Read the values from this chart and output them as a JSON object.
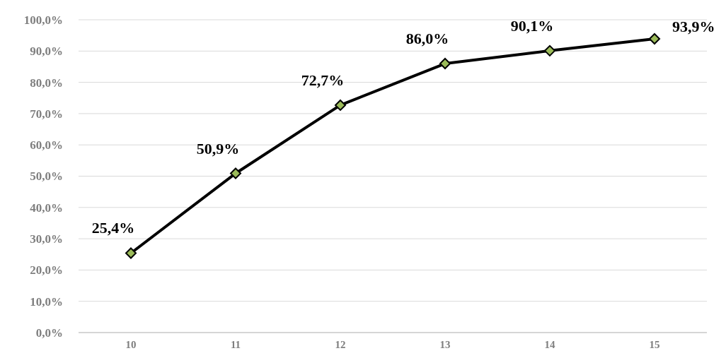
{
  "chart_data": {
    "type": "line",
    "categories": [
      "10",
      "11",
      "12",
      "13",
      "14",
      "15"
    ],
    "series": [
      {
        "color": "#000000",
        "values": [
          25.4,
          50.9,
          72.7,
          86.0,
          90.1,
          93.9
        ],
        "value_labels": [
          "25,4%",
          "50,9%",
          "72,7%",
          "86,0%",
          "90,1%",
          "93,9%"
        ]
      }
    ],
    "ylim": [
      0,
      100
    ],
    "yticks": [
      {
        "value": 0,
        "label": "0,0%"
      },
      {
        "value": 10,
        "label": "10,0%"
      },
      {
        "value": 20,
        "label": "20,0%"
      },
      {
        "value": 30,
        "label": "30,0%"
      },
      {
        "value": 40,
        "label": "40,0%"
      },
      {
        "value": 50,
        "label": "50,0%"
      },
      {
        "value": 60,
        "label": "60,0%"
      },
      {
        "value": 70,
        "label": "70,0%"
      },
      {
        "value": 80,
        "label": "80,0%"
      },
      {
        "value": 90,
        "label": "90,0%"
      },
      {
        "value": 100,
        "label": "100,0%"
      }
    ],
    "grid": "y",
    "marker": "diamond",
    "line_style": "solid"
  }
}
